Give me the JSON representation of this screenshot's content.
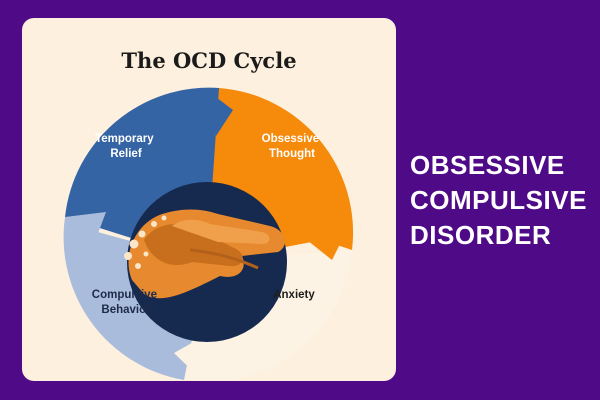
{
  "diagram": {
    "title": "The OCD Cycle",
    "segments": [
      {
        "id": "obsessive-thought",
        "lines": [
          "Obsessive",
          "Thought"
        ],
        "color": "#f58a0b",
        "text_color": "#ffffff"
      },
      {
        "id": "anxiety",
        "lines": [
          "Anxiety"
        ],
        "color": "#fdf3e4",
        "text_color": "#1e1e1e"
      },
      {
        "id": "compulsive-behavior",
        "lines": [
          "Compulsive",
          "Behavior"
        ],
        "color": "#a9bcdc",
        "text_color": "#1e2a4a"
      },
      {
        "id": "temporary-relief",
        "lines": [
          "Temporary",
          "Relief"
        ],
        "color": "#3564a5",
        "text_color": "#ffffff"
      }
    ],
    "center_image": "hands-washing-illustration"
  },
  "headline": {
    "lines": [
      "OBSESSIVE",
      "COMPULSIVE",
      "DISORDER"
    ]
  },
  "colors": {
    "background": "#4e0a87",
    "card": "#fdf0de",
    "center": "#16294e",
    "hands": "#e6892f"
  }
}
